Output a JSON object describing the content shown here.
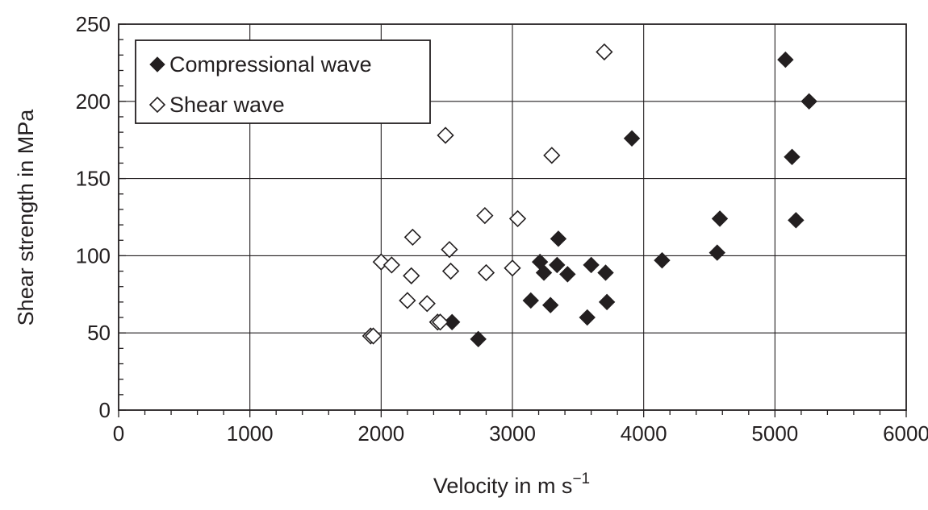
{
  "chart_data": {
    "type": "scatter",
    "title": "",
    "xlabel": "Velocity in m s",
    "xlabel_superscript": "−1",
    "ylabel": "Shear strength in MPa",
    "xlim": [
      0,
      6000
    ],
    "ylim": [
      0,
      250
    ],
    "x_ticks": [
      0,
      1000,
      2000,
      3000,
      4000,
      5000,
      6000
    ],
    "y_ticks": [
      0,
      50,
      100,
      150,
      200,
      250
    ],
    "x_tick_labels": [
      "0",
      "1000",
      "2000",
      "3000",
      "4000",
      "5000",
      "6000"
    ],
    "y_tick_labels": [
      "0",
      "50",
      "100",
      "150",
      "200",
      "250"
    ],
    "grid": true,
    "legend_position": "top-left",
    "series": [
      {
        "name": "Compressional wave",
        "marker": "filled-diamond",
        "color": "#231f20",
        "points": [
          {
            "x": 2540,
            "y": 57
          },
          {
            "x": 2740,
            "y": 46
          },
          {
            "x": 3140,
            "y": 71
          },
          {
            "x": 3210,
            "y": 96
          },
          {
            "x": 3240,
            "y": 89
          },
          {
            "x": 3290,
            "y": 68
          },
          {
            "x": 3340,
            "y": 94
          },
          {
            "x": 3350,
            "y": 111
          },
          {
            "x": 3420,
            "y": 88
          },
          {
            "x": 3570,
            "y": 60
          },
          {
            "x": 3600,
            "y": 94
          },
          {
            "x": 3710,
            "y": 89
          },
          {
            "x": 3720,
            "y": 70
          },
          {
            "x": 3910,
            "y": 176
          },
          {
            "x": 4140,
            "y": 97
          },
          {
            "x": 4560,
            "y": 102
          },
          {
            "x": 4580,
            "y": 124
          },
          {
            "x": 5080,
            "y": 227
          },
          {
            "x": 5130,
            "y": 164
          },
          {
            "x": 5160,
            "y": 123
          },
          {
            "x": 5260,
            "y": 200
          }
        ]
      },
      {
        "name": "Shear wave",
        "marker": "open-diamond",
        "color": "#231f20",
        "points": [
          {
            "x": 1920,
            "y": 48
          },
          {
            "x": 1940,
            "y": 48
          },
          {
            "x": 2000,
            "y": 96
          },
          {
            "x": 2080,
            "y": 94
          },
          {
            "x": 2200,
            "y": 71
          },
          {
            "x": 2230,
            "y": 87
          },
          {
            "x": 2240,
            "y": 112
          },
          {
            "x": 2350,
            "y": 69
          },
          {
            "x": 2430,
            "y": 57
          },
          {
            "x": 2450,
            "y": 57
          },
          {
            "x": 2490,
            "y": 178
          },
          {
            "x": 2520,
            "y": 104
          },
          {
            "x": 2530,
            "y": 90
          },
          {
            "x": 2790,
            "y": 126
          },
          {
            "x": 2800,
            "y": 89
          },
          {
            "x": 3000,
            "y": 92
          },
          {
            "x": 3040,
            "y": 124
          },
          {
            "x": 3300,
            "y": 165
          },
          {
            "x": 3700,
            "y": 232
          }
        ]
      }
    ]
  }
}
